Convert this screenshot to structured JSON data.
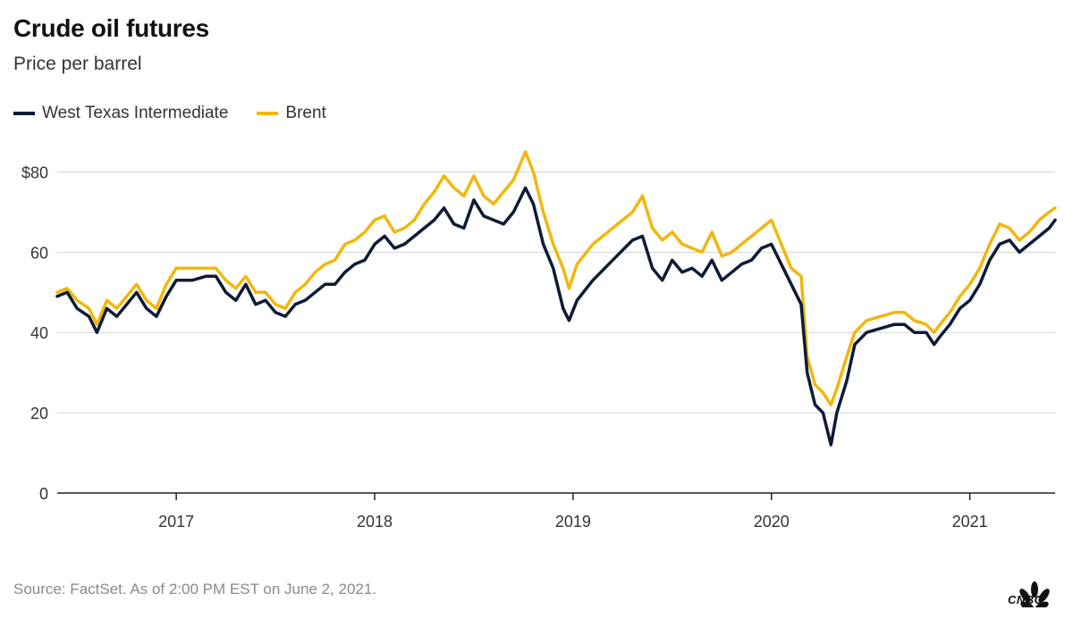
{
  "header": {
    "title": "Crude oil futures",
    "subtitle": "Price per barrel"
  },
  "legend": {
    "items": [
      {
        "label": "West Texas Intermediate",
        "color": "#0d1b36"
      },
      {
        "label": "Brent",
        "color": "#f2b70c"
      }
    ]
  },
  "footer": {
    "source": "Source: FactSet. As of 2:00 PM EST on June 2, 2021.",
    "logo_text": "CNBC"
  },
  "chart_data": {
    "type": "line",
    "title": "Crude oil futures",
    "subtitle": "Price per barrel",
    "xlabel": "",
    "ylabel": "",
    "xlim": [
      2016.4,
      2021.43
    ],
    "ylim": [
      0,
      85
    ],
    "y_ticks": [
      0,
      20,
      40,
      60,
      80
    ],
    "y_tick_labels": [
      "0",
      "20",
      "40",
      "60",
      "$80"
    ],
    "x_ticks": [
      2017,
      2018,
      2019,
      2020,
      2021
    ],
    "x_tick_labels": [
      "2017",
      "2018",
      "2019",
      "2020",
      "2021"
    ],
    "grid": "horizontal",
    "legend_position": "top-left",
    "series": [
      {
        "name": "West Texas Intermediate",
        "color": "#0d1b36",
        "points": [
          [
            2016.4,
            49
          ],
          [
            2016.45,
            50
          ],
          [
            2016.5,
            46
          ],
          [
            2016.56,
            44
          ],
          [
            2016.6,
            40
          ],
          [
            2016.65,
            46
          ],
          [
            2016.7,
            44
          ],
          [
            2016.75,
            47
          ],
          [
            2016.8,
            50
          ],
          [
            2016.85,
            46
          ],
          [
            2016.9,
            44
          ],
          [
            2016.95,
            49
          ],
          [
            2017.0,
            53
          ],
          [
            2017.08,
            53
          ],
          [
            2017.15,
            54
          ],
          [
            2017.2,
            54
          ],
          [
            2017.25,
            50
          ],
          [
            2017.3,
            48
          ],
          [
            2017.35,
            52
          ],
          [
            2017.4,
            47
          ],
          [
            2017.45,
            48
          ],
          [
            2017.5,
            45
          ],
          [
            2017.55,
            44
          ],
          [
            2017.6,
            47
          ],
          [
            2017.65,
            48
          ],
          [
            2017.7,
            50
          ],
          [
            2017.75,
            52
          ],
          [
            2017.8,
            52
          ],
          [
            2017.85,
            55
          ],
          [
            2017.9,
            57
          ],
          [
            2017.95,
            58
          ],
          [
            2018.0,
            62
          ],
          [
            2018.05,
            64
          ],
          [
            2018.1,
            61
          ],
          [
            2018.15,
            62
          ],
          [
            2018.2,
            64
          ],
          [
            2018.25,
            66
          ],
          [
            2018.3,
            68
          ],
          [
            2018.35,
            71
          ],
          [
            2018.4,
            67
          ],
          [
            2018.45,
            66
          ],
          [
            2018.5,
            73
          ],
          [
            2018.55,
            69
          ],
          [
            2018.6,
            68
          ],
          [
            2018.65,
            67
          ],
          [
            2018.7,
            70
          ],
          [
            2018.76,
            76
          ],
          [
            2018.8,
            72
          ],
          [
            2018.85,
            62
          ],
          [
            2018.9,
            56
          ],
          [
            2018.95,
            46
          ],
          [
            2018.98,
            43
          ],
          [
            2019.02,
            48
          ],
          [
            2019.1,
            53
          ],
          [
            2019.2,
            58
          ],
          [
            2019.3,
            63
          ],
          [
            2019.35,
            64
          ],
          [
            2019.4,
            56
          ],
          [
            2019.45,
            53
          ],
          [
            2019.5,
            58
          ],
          [
            2019.55,
            55
          ],
          [
            2019.6,
            56
          ],
          [
            2019.65,
            54
          ],
          [
            2019.7,
            58
          ],
          [
            2019.75,
            53
          ],
          [
            2019.8,
            55
          ],
          [
            2019.85,
            57
          ],
          [
            2019.9,
            58
          ],
          [
            2019.95,
            61
          ],
          [
            2020.0,
            62
          ],
          [
            2020.05,
            57
          ],
          [
            2020.1,
            52
          ],
          [
            2020.15,
            47
          ],
          [
            2020.18,
            30
          ],
          [
            2020.22,
            22
          ],
          [
            2020.26,
            20
          ],
          [
            2020.3,
            12
          ],
          [
            2020.33,
            20
          ],
          [
            2020.38,
            28
          ],
          [
            2020.42,
            37
          ],
          [
            2020.48,
            40
          ],
          [
            2020.55,
            41
          ],
          [
            2020.62,
            42
          ],
          [
            2020.67,
            42
          ],
          [
            2020.72,
            40
          ],
          [
            2020.78,
            40
          ],
          [
            2020.82,
            37
          ],
          [
            2020.85,
            39
          ],
          [
            2020.9,
            42
          ],
          [
            2020.95,
            46
          ],
          [
            2021.0,
            48
          ],
          [
            2021.05,
            52
          ],
          [
            2021.1,
            58
          ],
          [
            2021.15,
            62
          ],
          [
            2021.2,
            63
          ],
          [
            2021.25,
            60
          ],
          [
            2021.3,
            62
          ],
          [
            2021.35,
            64
          ],
          [
            2021.4,
            66
          ],
          [
            2021.43,
            68
          ]
        ]
      },
      {
        "name": "Brent",
        "color": "#f2b70c",
        "points": [
          [
            2016.4,
            50
          ],
          [
            2016.45,
            51
          ],
          [
            2016.5,
            48
          ],
          [
            2016.56,
            46
          ],
          [
            2016.6,
            42
          ],
          [
            2016.65,
            48
          ],
          [
            2016.7,
            46
          ],
          [
            2016.75,
            49
          ],
          [
            2016.8,
            52
          ],
          [
            2016.85,
            48
          ],
          [
            2016.9,
            46
          ],
          [
            2016.95,
            52
          ],
          [
            2017.0,
            56
          ],
          [
            2017.08,
            56
          ],
          [
            2017.15,
            56
          ],
          [
            2017.2,
            56
          ],
          [
            2017.25,
            53
          ],
          [
            2017.3,
            51
          ],
          [
            2017.35,
            54
          ],
          [
            2017.4,
            50
          ],
          [
            2017.45,
            50
          ],
          [
            2017.5,
            47
          ],
          [
            2017.55,
            46
          ],
          [
            2017.6,
            50
          ],
          [
            2017.65,
            52
          ],
          [
            2017.7,
            55
          ],
          [
            2017.75,
            57
          ],
          [
            2017.8,
            58
          ],
          [
            2017.85,
            62
          ],
          [
            2017.9,
            63
          ],
          [
            2017.95,
            65
          ],
          [
            2018.0,
            68
          ],
          [
            2018.05,
            69
          ],
          [
            2018.1,
            65
          ],
          [
            2018.15,
            66
          ],
          [
            2018.2,
            68
          ],
          [
            2018.25,
            72
          ],
          [
            2018.3,
            75
          ],
          [
            2018.35,
            79
          ],
          [
            2018.4,
            76
          ],
          [
            2018.45,
            74
          ],
          [
            2018.5,
            79
          ],
          [
            2018.55,
            74
          ],
          [
            2018.6,
            72
          ],
          [
            2018.65,
            75
          ],
          [
            2018.7,
            78
          ],
          [
            2018.76,
            85
          ],
          [
            2018.8,
            80
          ],
          [
            2018.85,
            70
          ],
          [
            2018.9,
            62
          ],
          [
            2018.95,
            56
          ],
          [
            2018.98,
            51
          ],
          [
            2019.02,
            57
          ],
          [
            2019.1,
            62
          ],
          [
            2019.2,
            66
          ],
          [
            2019.3,
            70
          ],
          [
            2019.35,
            74
          ],
          [
            2019.4,
            66
          ],
          [
            2019.45,
            63
          ],
          [
            2019.5,
            65
          ],
          [
            2019.55,
            62
          ],
          [
            2019.6,
            61
          ],
          [
            2019.65,
            60
          ],
          [
            2019.7,
            65
          ],
          [
            2019.75,
            59
          ],
          [
            2019.8,
            60
          ],
          [
            2019.85,
            62
          ],
          [
            2019.9,
            64
          ],
          [
            2019.95,
            66
          ],
          [
            2020.0,
            68
          ],
          [
            2020.05,
            62
          ],
          [
            2020.1,
            56
          ],
          [
            2020.15,
            54
          ],
          [
            2020.18,
            34
          ],
          [
            2020.22,
            27
          ],
          [
            2020.26,
            25
          ],
          [
            2020.3,
            22
          ],
          [
            2020.33,
            26
          ],
          [
            2020.38,
            34
          ],
          [
            2020.42,
            40
          ],
          [
            2020.48,
            43
          ],
          [
            2020.55,
            44
          ],
          [
            2020.62,
            45
          ],
          [
            2020.67,
            45
          ],
          [
            2020.72,
            43
          ],
          [
            2020.78,
            42
          ],
          [
            2020.82,
            40
          ],
          [
            2020.85,
            42
          ],
          [
            2020.9,
            45
          ],
          [
            2020.95,
            49
          ],
          [
            2021.0,
            52
          ],
          [
            2021.05,
            56
          ],
          [
            2021.1,
            62
          ],
          [
            2021.15,
            67
          ],
          [
            2021.2,
            66
          ],
          [
            2021.25,
            63
          ],
          [
            2021.3,
            65
          ],
          [
            2021.35,
            68
          ],
          [
            2021.4,
            70
          ],
          [
            2021.43,
            71
          ]
        ]
      }
    ]
  }
}
